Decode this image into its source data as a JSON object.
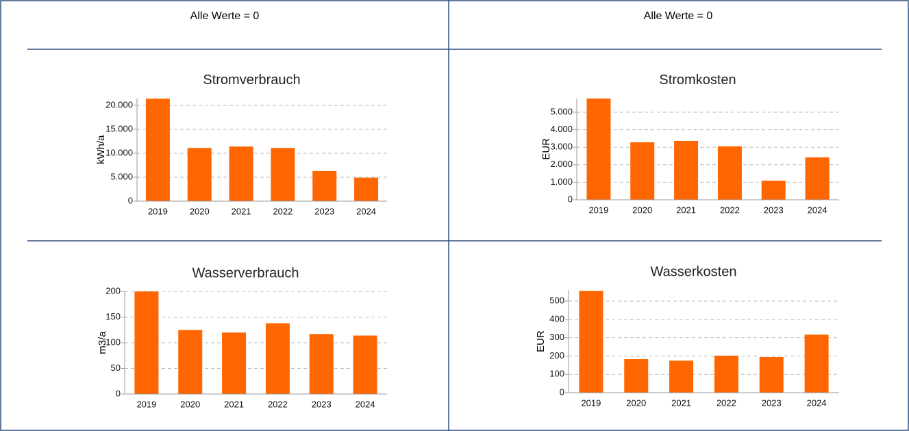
{
  "header": [
    "Alle Werte = 0",
    "Alle Werte = 0"
  ],
  "chart_data": [
    {
      "type": "bar",
      "title": "Stromverbrauch",
      "ylabel": "kWh/a",
      "color": "#ff6600",
      "grid": true,
      "categories": [
        "2019",
        "2020",
        "2021",
        "2022",
        "2023",
        "2024"
      ],
      "values": [
        21400,
        11100,
        11400,
        11100,
        6300,
        4900
      ],
      "ylim": [
        0,
        21500
      ],
      "yticks": [
        0,
        {
          "value": 5000,
          "label": "5.000"
        },
        {
          "value": 10000,
          "label": "10.000"
        },
        {
          "value": 15000,
          "label": "15.000"
        },
        {
          "value": 20000,
          "label": "20.000"
        }
      ]
    },
    {
      "type": "bar",
      "title": "Stromkosten",
      "ylabel": "EUR",
      "color": "#ff6600",
      "grid": true,
      "categories": [
        "2019",
        "2020",
        "2021",
        "2022",
        "2023",
        "2024"
      ],
      "values": [
        5780,
        3280,
        3360,
        3050,
        1090,
        2420
      ],
      "ylim": [
        0,
        5800
      ],
      "yticks": [
        0,
        {
          "value": 1000,
          "label": "1.000"
        },
        {
          "value": 2000,
          "label": "2.000"
        },
        {
          "value": 3000,
          "label": "3.000"
        },
        {
          "value": 4000,
          "label": "4.000"
        },
        {
          "value": 5000,
          "label": "5.000"
        }
      ]
    },
    {
      "type": "bar",
      "title": "Wasserverbrauch",
      "ylabel": "m3/a",
      "color": "#ff6600",
      "grid": true,
      "categories": [
        "2019",
        "2020",
        "2021",
        "2022",
        "2023",
        "2024"
      ],
      "values": [
        200,
        125,
        120,
        138,
        117,
        114
      ],
      "ylim": [
        0,
        200
      ],
      "yticks": [
        0,
        50,
        100,
        150,
        200
      ]
    },
    {
      "type": "bar",
      "title": "Wasserkosten",
      "ylabel": "EUR",
      "color": "#ff6600",
      "grid": true,
      "categories": [
        "2019",
        "2020",
        "2021",
        "2022",
        "2023",
        "2024"
      ],
      "values": [
        556,
        183,
        175,
        202,
        194,
        317
      ],
      "ylim": [
        0,
        560
      ],
      "yticks": [
        0,
        100,
        200,
        300,
        400,
        500
      ]
    }
  ]
}
